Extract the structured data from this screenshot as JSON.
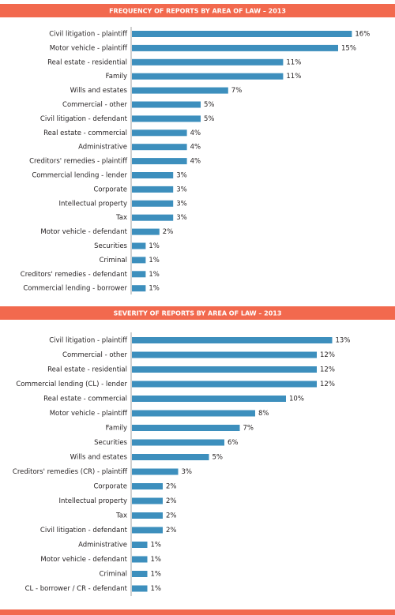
{
  "chart_data": [
    {
      "type": "bar",
      "orientation": "horizontal",
      "title": "FREQUENCY OF REPORTS BY AREA OF LAW – 2013",
      "categories": [
        "Civil litigation - plaintiff",
        "Motor vehicle - plaintiff",
        "Real estate - residential",
        "Family",
        "Wills and estates",
        "Commercial - other",
        "Civil litigation - defendant",
        "Real estate - commercial",
        "Administrative",
        "Creditors' remedies - plaintiff",
        "Commercial lending - lender",
        "Corporate",
        "Intellectual property",
        "Tax",
        "Motor vehicle - defendant",
        "Securities",
        "Criminal",
        "Creditors' remedies - defendant",
        "Commercial lending - borrower"
      ],
      "values": [
        16,
        15,
        11,
        11,
        7,
        5,
        5,
        4,
        4,
        4,
        3,
        3,
        3,
        3,
        2,
        1,
        1,
        1,
        1
      ],
      "value_labels": [
        "16%",
        "15%",
        "11%",
        "11%",
        "7%",
        "5%",
        "5%",
        "4%",
        "4%",
        "4%",
        "3%",
        "3%",
        "3%",
        "3%",
        "2%",
        "1%",
        "1%",
        "1%",
        "1%"
      ],
      "color": "#3d8fbd"
    },
    {
      "type": "bar",
      "orientation": "horizontal",
      "title": "SEVERITY OF REPORTS BY AREA OF LAW – 2013",
      "categories": [
        "Civil litigation - plaintiff",
        "Commercial - other",
        "Real estate - residential",
        "Commercial lending (CL) - lender",
        "Real estate - commercial",
        "Motor vehicle - plaintiff",
        "Family",
        "Securities",
        "Wills and estates",
        "Creditors' remedies (CR) - plaintiff",
        "Corporate",
        "Intellectual property",
        "Tax",
        "Civil litigation - defendant",
        "Administrative",
        "Motor vehicle - defendant",
        "Criminal",
        "CL - borrower / CR - defendant"
      ],
      "values": [
        13,
        12,
        12,
        12,
        10,
        8,
        7,
        6,
        5,
        3,
        2,
        2,
        2,
        2,
        1,
        1,
        1,
        1
      ],
      "value_labels": [
        "13%",
        "12%",
        "12%",
        "12%",
        "10%",
        "8%",
        "7%",
        "6%",
        "5%",
        "3%",
        "2%",
        "2%",
        "2%",
        "2%",
        "1%",
        "1%",
        "1%",
        "1%"
      ],
      "color": "#3d8fbd"
    }
  ]
}
